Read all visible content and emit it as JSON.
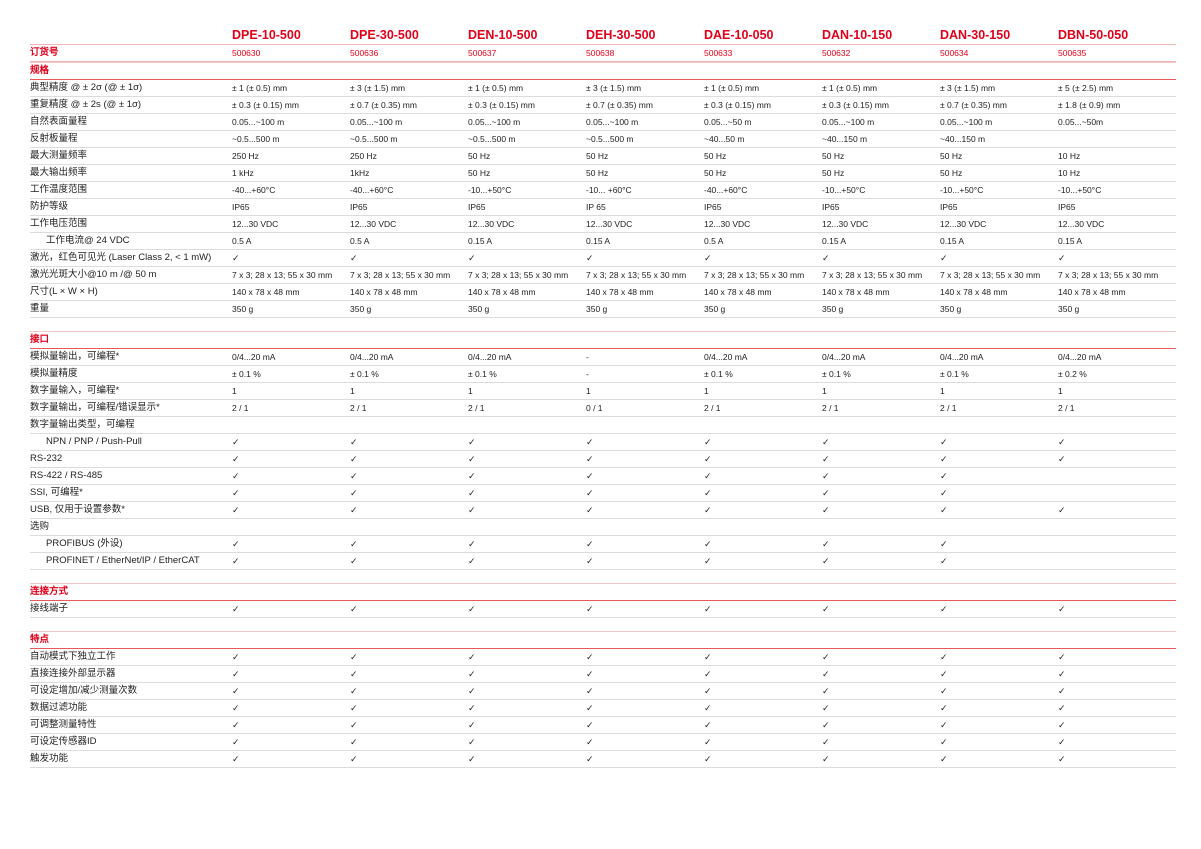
{
  "models": [
    "DPE-10-500",
    "DPE-30-500",
    "DEN-10-500",
    "DEH-30-500",
    "DAE-10-050",
    "DAN-10-150",
    "DAN-30-150",
    "DBN-50-050"
  ],
  "order": {
    "label": "订货号",
    "values": [
      "500630",
      "500636",
      "500637",
      "500638",
      "500633",
      "500632",
      "500634",
      "500635"
    ]
  },
  "accent_color": "#e2001a",
  "sections": [
    {
      "title": "规格",
      "rows": [
        {
          "label": "典型精度 @ ± 2σ (@ ± 1σ)",
          "values": [
            "± 1 (± 0.5) mm",
            "± 3 (± 1.5) mm",
            "± 1 (± 0.5) mm",
            "± 3 (± 1.5) mm",
            "± 1 (± 0.5) mm",
            "± 1 (± 0.5) mm",
            "± 3 (± 1.5) mm",
            "± 5 (± 2.5) mm"
          ]
        },
        {
          "label": "重复精度 @ ± 2s (@ ± 1σ)",
          "values": [
            "± 0.3 (± 0.15) mm",
            "± 0.7 (± 0.35) mm",
            "± 0.3 (± 0.15) mm",
            "± 0.7 (± 0.35) mm",
            "± 0.3 (± 0.15) mm",
            "± 0.3 (± 0.15) mm",
            "± 0.7 (± 0.35) mm",
            "± 1.8 (± 0.9) mm"
          ]
        },
        {
          "label": "自然表面量程",
          "values": [
            "0.05...~100 m",
            "0.05...~100 m",
            "0.05...~100 m",
            "0.05...~100 m",
            "0.05...~50 m",
            "0.05...~100 m",
            "0.05...~100 m",
            "0.05...~50m"
          ]
        },
        {
          "label": "反射板量程",
          "values": [
            " ~0.5...500 m",
            " ~0.5...500 m",
            " ~0.5...500 m",
            " ~0.5...500 m",
            "~40...50 m",
            "~40...150 m",
            "~40...150 m",
            ""
          ]
        },
        {
          "label": "最大测量频率",
          "values": [
            "250 Hz",
            "250 Hz",
            "50 Hz",
            "50 Hz",
            "50 Hz",
            "50 Hz",
            "50 Hz",
            "10 Hz"
          ]
        },
        {
          "label": "最大输出频率",
          "values": [
            "1 kHz",
            "1kHz",
            "50 Hz",
            "50 Hz",
            "50 Hz",
            "50 Hz",
            "50 Hz",
            "10 Hz"
          ]
        },
        {
          "label": "工作温度范围",
          "values": [
            "-40...+60°C",
            "-40...+60°C",
            "-10...+50°C",
            "-10... +60°C",
            "-40...+60°C",
            "-10...+50°C",
            "-10...+50°C",
            "-10...+50°C"
          ]
        },
        {
          "label": "防护等级",
          "values": [
            "IP65",
            "IP65",
            "IP65",
            "IP 65",
            "IP65",
            "IP65",
            "IP65",
            "IP65"
          ]
        },
        {
          "label": "工作电压范围",
          "values": [
            "12...30 VDC",
            "12...30 VDC",
            "12...30 VDC",
            "12...30 VDC",
            "12...30 VDC",
            "12...30 VDC",
            "12...30 VDC",
            "12...30 VDC"
          ]
        },
        {
          "label": "工作电流@ 24 VDC",
          "indent": true,
          "values": [
            "0.5 A",
            "0.5 A",
            "0.15 A",
            "0.15 A",
            "0.5 A",
            "0.15 A",
            "0.15 A",
            "0.15 A"
          ]
        },
        {
          "label": "激光，红色可见光 (Laser Class 2, < 1 mW)",
          "values": [
            "✓",
            "✓",
            "✓",
            "✓",
            "✓",
            "✓",
            "✓",
            "✓"
          ]
        },
        {
          "label": "激光光斑大小@10 m /@ 50 m",
          "values": [
            "7 x 3; 28 x 13; 55 x 30 mm",
            "7 x 3; 28 x 13; 55 x 30 mm",
            "7 x 3; 28 x 13; 55 x 30 mm",
            "7 x 3; 28 x 13; 55 x 30 mm",
            "7 x 3; 28 x 13; 55 x 30 mm",
            "7 x 3; 28 x 13; 55 x 30 mm",
            "7 x 3; 28 x 13; 55 x 30 mm",
            "7 x 3; 28 x 13; 55 x 30 mm"
          ]
        },
        {
          "label": "尺寸(L × W × H)",
          "values": [
            "140 x 78 x 48 mm",
            "140 x 78 x 48 mm",
            "140 x 78 x 48 mm",
            "140 x 78 x 48 mm",
            "140 x 78 x 48 mm",
            "140 x 78 x 48 mm",
            "140 x 78 x 48 mm",
            "140 x 78 x 48 mm"
          ]
        },
        {
          "label": "重量",
          "values": [
            "350 g",
            "350 g",
            "350 g",
            "350 g",
            "350 g",
            "350 g",
            "350 g",
            "350 g"
          ]
        }
      ]
    },
    {
      "title": "接口",
      "rows": [
        {
          "label": "模拟量输出，可编程*",
          "values": [
            "0/4...20 mA",
            "0/4...20 mA",
            "0/4...20 mA",
            "-",
            "0/4...20 mA",
            "0/4...20 mA",
            "0/4...20 mA",
            "0/4...20 mA"
          ]
        },
        {
          "label": "模拟量精度",
          "values": [
            "± 0.1 %",
            "± 0.1 %",
            "± 0.1 %",
            "-",
            "± 0.1 %",
            "± 0.1 %",
            "± 0.1 %",
            "± 0.2 %"
          ]
        },
        {
          "label": "数字量输入，可编程*",
          "values": [
            "1",
            "1",
            "1",
            "1",
            "1",
            "1",
            "1",
            "1"
          ]
        },
        {
          "label": "数字量输出，可编程/错误显示*",
          "values": [
            "2 / 1",
            "2 / 1",
            "2 / 1",
            "0 / 1",
            "2 / 1",
            "2 / 1",
            "2 / 1",
            "2 / 1"
          ]
        },
        {
          "label": "数字量输出类型，可编程",
          "values": [
            "",
            "",
            "",
            "",
            "",
            "",
            "",
            ""
          ]
        },
        {
          "label": "NPN / PNP / Push-Pull",
          "indent": true,
          "values": [
            "✓",
            "✓",
            "✓",
            "✓",
            "✓",
            "✓",
            "✓",
            "✓"
          ]
        },
        {
          "label": "RS-232",
          "values": [
            "✓",
            "✓",
            "✓",
            "✓",
            "✓",
            "✓",
            "✓",
            "✓"
          ]
        },
        {
          "label": "RS-422 / RS-485",
          "values": [
            "✓",
            "✓",
            "✓",
            "✓",
            "✓",
            "✓",
            "✓",
            ""
          ]
        },
        {
          "label": "SSI, 可编程*",
          "values": [
            "✓",
            "✓",
            "✓",
            "✓",
            "✓",
            "✓",
            "✓",
            ""
          ]
        },
        {
          "label": "USB, 仅用于设置参数*",
          "values": [
            "✓",
            "✓",
            "✓",
            "✓",
            "✓",
            "✓",
            "✓",
            "✓"
          ]
        },
        {
          "label": "选购",
          "values": [
            "",
            "",
            "",
            "",
            "",
            "",
            "",
            ""
          ]
        },
        {
          "label": "PROFIBUS (外设)",
          "indent": true,
          "values": [
            "✓",
            "✓",
            "✓",
            "✓",
            "✓",
            "✓",
            "✓",
            ""
          ]
        },
        {
          "label": "PROFINET / EtherNet/IP / EtherCAT",
          "indent": true,
          "values": [
            "✓",
            "✓",
            "✓",
            "✓",
            "✓",
            "✓",
            "✓",
            ""
          ]
        }
      ]
    },
    {
      "title": "连接方式",
      "rows": [
        {
          "label": "接线端子",
          "values": [
            "✓",
            "✓",
            "✓",
            "✓",
            "✓",
            "✓",
            "✓",
            "✓"
          ]
        }
      ]
    },
    {
      "title": "特点",
      "rows": [
        {
          "label": "自动模式下独立工作",
          "values": [
            "✓",
            "✓",
            "✓",
            "✓",
            "✓",
            "✓",
            "✓",
            "✓"
          ]
        },
        {
          "label": "直接连接外部显示器",
          "values": [
            "✓",
            "✓",
            "✓",
            "✓",
            "✓",
            "✓",
            "✓",
            "✓"
          ]
        },
        {
          "label": "可设定增加/减少测量次数",
          "values": [
            "✓",
            "✓",
            "✓",
            "✓",
            "✓",
            "✓",
            "✓",
            "✓"
          ]
        },
        {
          "label": "数据过滤功能",
          "values": [
            "✓",
            "✓",
            "✓",
            "✓",
            "✓",
            "✓",
            "✓",
            "✓"
          ]
        },
        {
          "label": "可调整测量特性",
          "values": [
            "✓",
            "✓",
            "✓",
            "✓",
            "✓",
            "✓",
            "✓",
            "✓"
          ]
        },
        {
          "label": "可设定传感器ID",
          "values": [
            "✓",
            "✓",
            "✓",
            "✓",
            "✓",
            "✓",
            "✓",
            "✓"
          ]
        },
        {
          "label": "触发功能",
          "values": [
            "✓",
            "✓",
            "✓",
            "✓",
            "✓",
            "✓",
            "✓",
            "✓"
          ]
        }
      ]
    }
  ]
}
